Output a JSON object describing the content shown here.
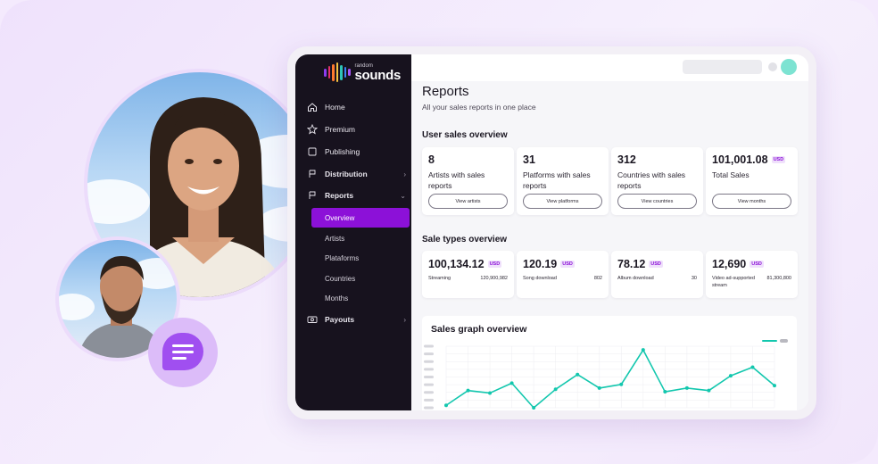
{
  "app": {
    "logo_small": "random",
    "logo_big": "sounds",
    "logo_bar_colors": [
      "#8c3cf0",
      "#e1306c",
      "#ff7a2f",
      "#f6c343",
      "#2ec4b6",
      "#3b82f6",
      "#a855f7"
    ]
  },
  "sidebar": {
    "items": [
      {
        "label": "Home",
        "icon": "home-icon"
      },
      {
        "label": "Premium",
        "icon": "star-icon"
      },
      {
        "label": "Publishing",
        "icon": "publishing-icon"
      },
      {
        "label": "Distribution",
        "icon": "distribution-icon"
      },
      {
        "label": "Reports",
        "icon": "reports-icon"
      }
    ],
    "sub_items": [
      {
        "label": "Overview",
        "active": true
      },
      {
        "label": "Artists"
      },
      {
        "label": "Plataforms"
      },
      {
        "label": "Countries"
      },
      {
        "label": "Months"
      }
    ],
    "payouts": {
      "label": "Payouts",
      "icon": "payouts-icon"
    }
  },
  "page": {
    "title": "Reports",
    "subtitle": "All your sales reports in one place"
  },
  "user_sales": {
    "title": "User sales overview",
    "cards": [
      {
        "value": "8",
        "label": "Artists with sales reports",
        "button": "View artists"
      },
      {
        "value": "31",
        "label": "Platforms with sales reports",
        "button": "View platforms"
      },
      {
        "value": "312",
        "label": "Countries with sales reports",
        "button": "View countries"
      },
      {
        "value": "101,001.08",
        "badge": "USD",
        "label": "Total Sales",
        "button": "View months"
      }
    ]
  },
  "sale_types": {
    "title": "Sale types overview",
    "cards": [
      {
        "value": "100,134.12",
        "badge": "USD",
        "name": "Streaming",
        "count": "120,900,982"
      },
      {
        "value": "120.19",
        "badge": "USD",
        "name": "Song download",
        "count": "802"
      },
      {
        "value": "78.12",
        "badge": "USD",
        "name": "Album download",
        "count": "30"
      },
      {
        "value": "12,690",
        "badge": "USD",
        "name": "Video ad-supported stream",
        "count": "81,300,800"
      }
    ]
  },
  "chart_data": {
    "type": "line",
    "title": "Sales graph overview",
    "series": [
      {
        "values": [
          2,
          14,
          12,
          20,
          0,
          15,
          27,
          16,
          19,
          47,
          13,
          16,
          14,
          26,
          33,
          18
        ],
        "color": "#13c7ae"
      }
    ],
    "ylim": [
      0,
      50
    ],
    "grid": true,
    "legend": "top-right"
  },
  "colors": {
    "accent": "#8c11d8",
    "teal": "#13c7ae",
    "sidebar_bg": "#17121e"
  }
}
